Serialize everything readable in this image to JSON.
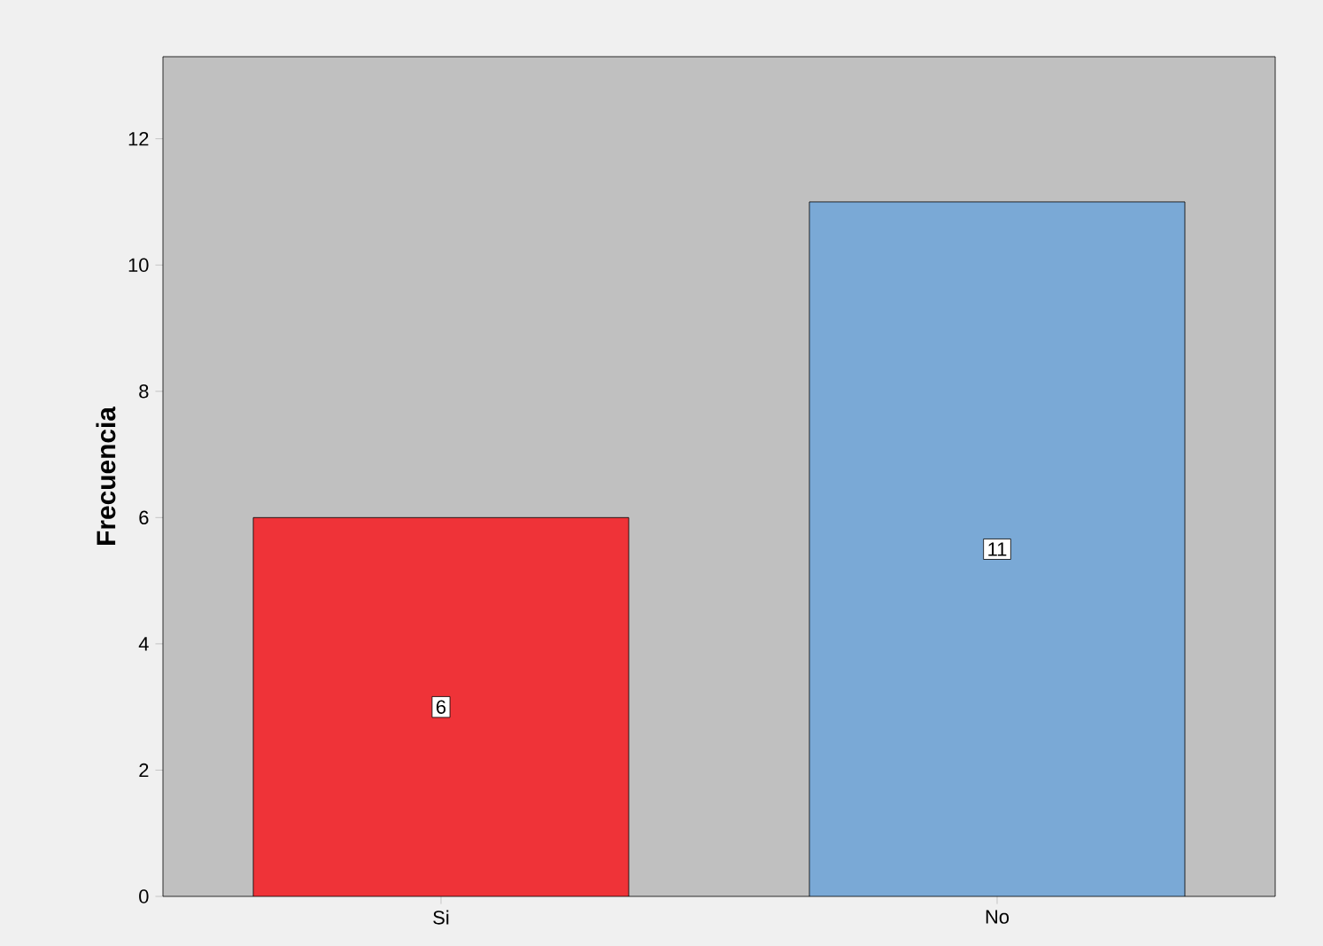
{
  "chart_data": {
    "type": "bar",
    "ylabel": "Frecuencia",
    "categories": [
      "Si",
      "No"
    ],
    "values": [
      6,
      11
    ],
    "colors": [
      "#ef3338",
      "#7aa9d6"
    ],
    "ylim": [
      0,
      13.3
    ],
    "yticks": [
      0,
      2,
      4,
      6,
      8,
      10,
      12
    ],
    "data_labels": true
  }
}
